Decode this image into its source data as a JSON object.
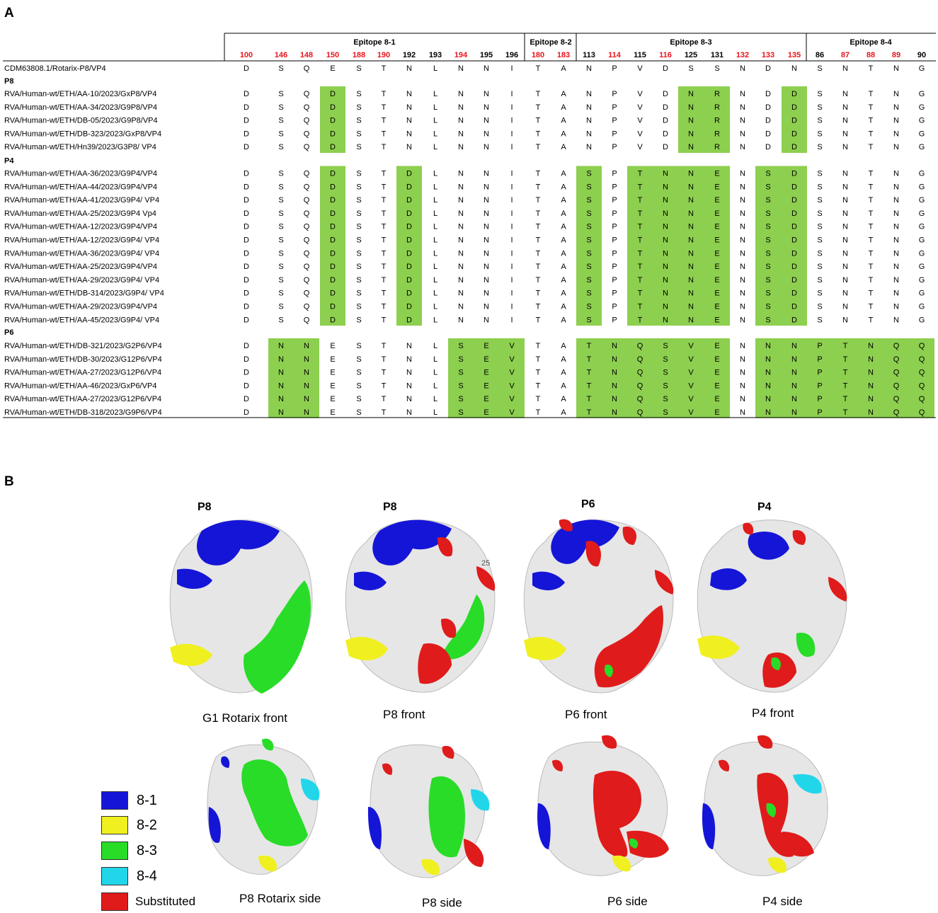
{
  "panel_a": {
    "label": "A",
    "epitopes": [
      {
        "name": "Epitope 8-1",
        "columns": [
          "100",
          "146",
          "148",
          "150",
          "188",
          "190",
          "192",
          "193",
          "194",
          "195",
          "196"
        ]
      },
      {
        "name": "Epitope 8-2",
        "columns": [
          "180",
          "183"
        ]
      },
      {
        "name": "Epitope 8-3",
        "columns": [
          "113",
          "114",
          "115",
          "116",
          "125",
          "131",
          "132",
          "133",
          "135"
        ]
      },
      {
        "name": "Epitope 8-4",
        "columns": [
          "86",
          "87",
          "88",
          "89",
          "90"
        ]
      }
    ],
    "red_positions": [
      "100",
      "146",
      "148",
      "150",
      "188",
      "190",
      "194",
      "180",
      "183",
      "114",
      "116",
      "132",
      "133",
      "135",
      "87",
      "88",
      "89"
    ],
    "colors": {
      "highlight": "#8dcf4f",
      "red_position": "#e8141c"
    },
    "reference": {
      "name": "CDM63808.1/Rotarix-P8/VP4",
      "residues": [
        "D",
        "S",
        "Q",
        "E",
        "S",
        "T",
        "N",
        "L",
        "N",
        "N",
        "I",
        "T",
        "A",
        "N",
        "P",
        "V",
        "D",
        "S",
        "S",
        "N",
        "D",
        "N",
        "S",
        "N",
        "T",
        "N",
        "G"
      ]
    },
    "groups": [
      {
        "name": "P8",
        "highlight_columns": [
          3,
          17,
          18,
          21
        ],
        "residues": [
          "D",
          "S",
          "Q",
          "D",
          "S",
          "T",
          "N",
          "L",
          "N",
          "N",
          "I",
          "T",
          "A",
          "N",
          "P",
          "V",
          "D",
          "N",
          "R",
          "N",
          "D",
          "D",
          "S",
          "N",
          "T",
          "N",
          "G"
        ],
        "rows": [
          "RVA/Human-wt/ETH/AA-10/2023/GxP8/VP4",
          "RVA/Human-wt/ETH/AA-34/2023/G9P8/VP4",
          "RVA/Human-wt/ETH/DB-05/2023/G9P8/VP4",
          "RVA/Human-wt/ETH/DB-323/2023/GxP8/VP4",
          "RVA/Human-wt/ETH/Hn39/2023/G3P8/ VP4"
        ]
      },
      {
        "name": "P4",
        "highlight_columns": [
          3,
          6,
          13,
          15,
          16,
          17,
          18,
          20,
          21
        ],
        "residues": [
          "D",
          "S",
          "Q",
          "D",
          "S",
          "T",
          "D",
          "L",
          "N",
          "N",
          "I",
          "T",
          "A",
          "S",
          "P",
          "T",
          "N",
          "N",
          "E",
          "N",
          "S",
          "D",
          "S",
          "N",
          "T",
          "N",
          "G"
        ],
        "rows": [
          "RVA/Human-wt/ETH/AA-36/2023/G9P4/VP4",
          "RVA/Human-wt/ETH/AA-44/2023/G9P4/VP4",
          "RVA/Human-wt/ETH/AA-41/2023/G9P4/ VP4",
          "RVA/Human-wt/ETH/AA-25/2023/G9P4 Vp4",
          "RVA/Human-wt/ETH/AA-12/2023/G9P4/VP4",
          "RVA/Human-wt/ETH/AA-12/2023/G9P4/ VP4",
          "RVA/Human-wt/ETH/AA-36/2023/G9P4/ VP4",
          "RVA/Human-wt/ETH/AA-25/2023/G9P4/VP4",
          "RVA/Human-wt/ETH/AA-29/2023/G9P4/ VP4",
          "RVA/Human-wt/ETH/DB-314/2023/G9P4/ VP4",
          "RVA/Human-wt/ETH/AA-29/2023/G9P4/VP4",
          "RVA/Human-wt/ETH/AA-45/2023/G9P4/ VP4"
        ]
      },
      {
        "name": "P6",
        "highlight_columns": [
          1,
          2,
          8,
          9,
          10,
          13,
          14,
          15,
          16,
          17,
          18,
          20,
          21,
          22,
          23,
          24,
          25,
          26
        ],
        "residues": [
          "D",
          "N",
          "N",
          "E",
          "S",
          "T",
          "N",
          "L",
          "S",
          "E",
          "V",
          "T",
          "A",
          "T",
          "N",
          "Q",
          "S",
          "V",
          "E",
          "N",
          "N",
          "N",
          "P",
          "T",
          "N",
          "Q",
          "Q"
        ],
        "rows": [
          "RVA/Human-wt/ETH/DB-321/2023/G2P6/VP4",
          "RVA/Human-wt/ETH/DB-30/2023/G12P6/VP4",
          "RVA/Human-wt/ETH/AA-27/2023/G12P6/VP4",
          "RVA/Human-wt/ETH/AA-46/2023/GxP6/VP4",
          "RVA/Human-wt/ETH/AA-27/2023/G12P6/VP4",
          "RVA/Human-wt/ETH/DB-318/2023/G9P6/VP4"
        ]
      }
    ]
  },
  "panel_b": {
    "label": "B",
    "top_titles": [
      "P8",
      "P8",
      "P6",
      "P4"
    ],
    "front_captions": [
      "G1 Rotarix front",
      "P8 front",
      "P6 front",
      "P4 front"
    ],
    "side_captions": [
      "P8 Rotarix side",
      "P8 side",
      "P6 side",
      "P4 side"
    ],
    "stray_label": "25",
    "legend": [
      {
        "label": "8-1",
        "color": "#1515d8"
      },
      {
        "label": "8-2",
        "color": "#f0f020"
      },
      {
        "label": "8-3",
        "color": "#28dc28"
      },
      {
        "label": "8-4",
        "color": "#22d6ea"
      },
      {
        "label": "Substituted",
        "color": "#e01b1b"
      }
    ],
    "surface_color": "#e6e6e6"
  }
}
